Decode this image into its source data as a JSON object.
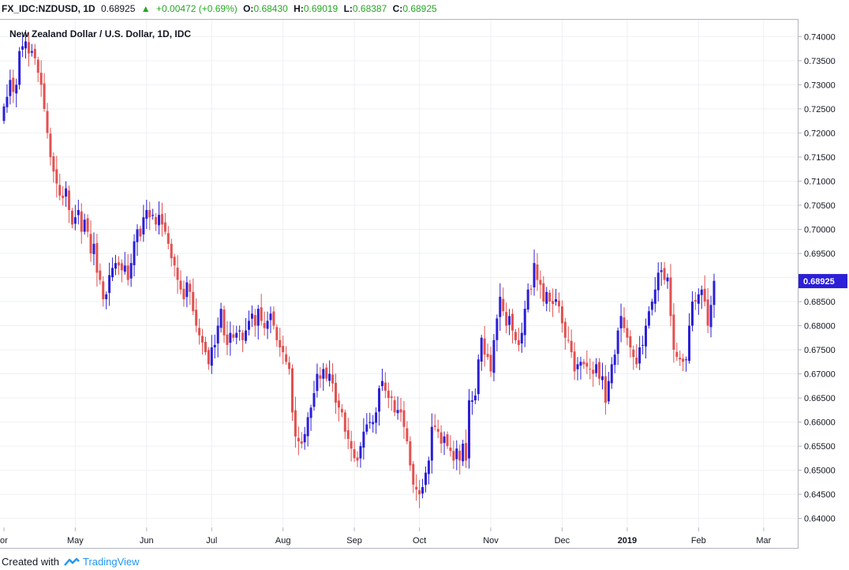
{
  "header": {
    "symbol": "FX_IDC:NZDUSD, 1D",
    "last": "0.68925",
    "change": "+0.00472 (+0.69%)",
    "open_label": "O:",
    "open": "0.68430",
    "high_label": "H:",
    "high": "0.69019",
    "low_label": "L:",
    "low": "0.68387",
    "close_label": "C:",
    "close": "0.68925",
    "up_arrow": "▲"
  },
  "footer": {
    "created_with": "Created with",
    "brand": "TradingView",
    "logo_icon": "tradingview-logo-icon"
  },
  "colors": {
    "up": "#2b1fd8",
    "down": "#e3504f",
    "grid": "#edf0f3",
    "price_tag": "#2b1fd8"
  },
  "chart_data": {
    "type": "candlestick",
    "title": "New Zealand Dollar / U.S. Dollar, 1D, IDC",
    "ylim": [
      0.6383,
      0.7435
    ],
    "yticks": [
      0.64,
      0.645,
      0.65,
      0.655,
      0.66,
      0.665,
      0.67,
      0.675,
      0.68,
      0.685,
      0.69,
      0.695,
      0.7,
      0.705,
      0.71,
      0.715,
      0.72,
      0.725,
      0.73,
      0.735,
      0.74
    ],
    "ytick_labels": [
      "0.64000",
      "0.64500",
      "0.65000",
      "0.65500",
      "0.66000",
      "0.66500",
      "0.67000",
      "0.67500",
      "0.68000",
      "0.68500",
      "0.69000",
      "0.69500",
      "0.70000",
      "0.70500",
      "0.71000",
      "0.71500",
      "0.72000",
      "0.72500",
      "0.73000",
      "0.73500",
      "0.74000"
    ],
    "last_price_label": "0.68925",
    "last_price": 0.68925,
    "x_axis": [
      {
        "label": "or",
        "index": 0,
        "bold": false
      },
      {
        "label": "May",
        "index": 23,
        "bold": false
      },
      {
        "label": "Jun",
        "index": 46,
        "bold": false
      },
      {
        "label": "Jul",
        "index": 67,
        "bold": false
      },
      {
        "label": "Aug",
        "index": 90,
        "bold": false
      },
      {
        "label": "Sep",
        "index": 113,
        "bold": false
      },
      {
        "label": "Oct",
        "index": 134,
        "bold": false
      },
      {
        "label": "Nov",
        "index": 157,
        "bold": false
      },
      {
        "label": "Dec",
        "index": 180,
        "bold": false
      },
      {
        "label": "2019",
        "index": 201,
        "bold": true
      },
      {
        "label": "Feb",
        "index": 224,
        "bold": false
      },
      {
        "label": "Mar",
        "index": 245,
        "bold": false
      }
    ],
    "grid": true,
    "closes": [
      0.7255,
      0.7275,
      0.731,
      0.7285,
      0.73,
      0.737,
      0.738,
      0.739,
      0.7365,
      0.737,
      0.7355,
      0.7325,
      0.73,
      0.725,
      0.72,
      0.715,
      0.712,
      0.7095,
      0.707,
      0.7065,
      0.7085,
      0.704,
      0.701,
      0.7025,
      0.704,
      0.6995,
      0.702,
      0.6995,
      0.695,
      0.697,
      0.691,
      0.6895,
      0.6855,
      0.6865,
      0.6905,
      0.692,
      0.693,
      0.6925,
      0.6915,
      0.6925,
      0.6895,
      0.693,
      0.6975,
      0.7,
      0.6985,
      0.7025,
      0.704,
      0.7025,
      0.703,
      0.701,
      0.703,
      0.701,
      0.6995,
      0.697,
      0.694,
      0.6925,
      0.6895,
      0.6875,
      0.6855,
      0.689,
      0.687,
      0.683,
      0.68,
      0.678,
      0.6765,
      0.6745,
      0.672,
      0.6755,
      0.676,
      0.68,
      0.6835,
      0.678,
      0.676,
      0.6785,
      0.6775,
      0.6785,
      0.679,
      0.677,
      0.679,
      0.681,
      0.6825,
      0.68,
      0.6835,
      0.681,
      0.6795,
      0.681,
      0.6825,
      0.68,
      0.677,
      0.6755,
      0.6745,
      0.6725,
      0.671,
      0.662,
      0.657,
      0.656,
      0.6555,
      0.6575,
      0.661,
      0.663,
      0.666,
      0.67,
      0.669,
      0.671,
      0.669,
      0.67,
      0.668,
      0.664,
      0.663,
      0.662,
      0.658,
      0.6565,
      0.6545,
      0.6525,
      0.652,
      0.655,
      0.658,
      0.6595,
      0.66,
      0.66,
      0.662,
      0.667,
      0.6685,
      0.6665,
      0.665,
      0.665,
      0.662,
      0.6625,
      0.662,
      0.659,
      0.656,
      0.651,
      0.647,
      0.646,
      0.645,
      0.6465,
      0.6495,
      0.652,
      0.659,
      0.659,
      0.658,
      0.6555,
      0.657,
      0.655,
      0.654,
      0.652,
      0.6545,
      0.652,
      0.6555,
      0.652,
      0.6645,
      0.6645,
      0.6655,
      0.673,
      0.6775,
      0.674,
      0.6735,
      0.6705,
      0.677,
      0.6815,
      0.686,
      0.683,
      0.68,
      0.682,
      0.679,
      0.677,
      0.676,
      0.6785,
      0.6835,
      0.6875,
      0.6875,
      0.693,
      0.6895,
      0.6885,
      0.685,
      0.687,
      0.685,
      0.6845,
      0.6855,
      0.684,
      0.6805,
      0.6775,
      0.677,
      0.6745,
      0.6705,
      0.672,
      0.6725,
      0.672,
      0.6715,
      0.671,
      0.67,
      0.672,
      0.669,
      0.6695,
      0.664,
      0.6685,
      0.672,
      0.674,
      0.679,
      0.682,
      0.6795,
      0.6775,
      0.6755,
      0.6735,
      0.672,
      0.6755,
      0.676,
      0.68,
      0.683,
      0.685,
      0.6875,
      0.691,
      0.6915,
      0.6895,
      0.69,
      0.682,
      0.675,
      0.6735,
      0.673,
      0.6725,
      0.673,
      0.68,
      0.685,
      0.685,
      0.6865,
      0.6875,
      0.685,
      0.68,
      0.6843,
      0.6893
    ]
  }
}
